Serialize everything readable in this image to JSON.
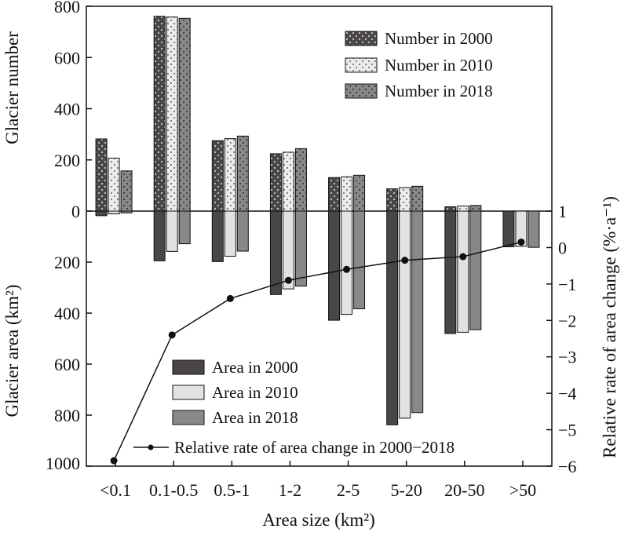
{
  "chart_data": {
    "type": "bar",
    "categories": [
      "<0.1",
      "0.1-0.5",
      "0.5-1",
      "1-2",
      "2-5",
      "5-20",
      "20-50",
      ">50"
    ],
    "xlabel": "Area size (km²)",
    "ylabel_top": "Glacier number",
    "ylabel_bottom": "Glacier area (km²)",
    "ylabel_right": "Relative rate of area change (%·a⁻¹)",
    "number_axis": {
      "range": [
        0,
        800
      ],
      "ticks": [
        "800",
        "600",
        "400",
        "200",
        "0"
      ],
      "tick_values": [
        800,
        600,
        400,
        200,
        0
      ]
    },
    "area_axis": {
      "range": [
        0,
        1000
      ],
      "ticks": [
        "200",
        "400",
        "600",
        "800",
        "1000"
      ],
      "tick_values": [
        200,
        400,
        600,
        800,
        1000
      ]
    },
    "rate_axis": {
      "range": [
        -6,
        1
      ],
      "ticks": [
        "1",
        "0",
        "−1",
        "−2",
        "−3",
        "−4",
        "−5",
        "−6"
      ],
      "tick_values": [
        1,
        0,
        -1,
        -2,
        -3,
        -4,
        -5,
        -6
      ]
    },
    "number_series": [
      {
        "name": "Number in 2000",
        "values": [
          282,
          761,
          275,
          224,
          131,
          87,
          17,
          0
        ],
        "fill": "#4a4646"
      },
      {
        "name": "Number in 2010",
        "values": [
          207,
          758,
          283,
          230,
          134,
          92,
          20,
          0
        ],
        "fill": "#e2e2e2"
      },
      {
        "name": "Number in 2018",
        "values": [
          157,
          753,
          293,
          244,
          140,
          97,
          22,
          0
        ],
        "fill": "#8a8787"
      }
    ],
    "area_series": [
      {
        "name": "Area in 2000",
        "values": [
          18,
          195,
          198,
          327,
          428,
          838,
          480,
          140
        ],
        "fill": "#4a4646"
      },
      {
        "name": "Area in 2010",
        "values": [
          11,
          158,
          177,
          305,
          405,
          812,
          475,
          138
        ],
        "fill": "#e2e2e2"
      },
      {
        "name": "Area in 2018",
        "values": [
          7,
          128,
          157,
          294,
          383,
          790,
          465,
          142
        ],
        "fill": "#8a8787"
      }
    ],
    "rate_series": {
      "name": "Relative rate of area change in 2000−2018",
      "values": [
        -5.85,
        -2.4,
        -1.4,
        -0.9,
        -0.6,
        -0.35,
        -0.25,
        0.15
      ],
      "color": "#111111"
    },
    "legend_top": "top-right",
    "legend_bottom": "bottom-center",
    "grid": false
  }
}
